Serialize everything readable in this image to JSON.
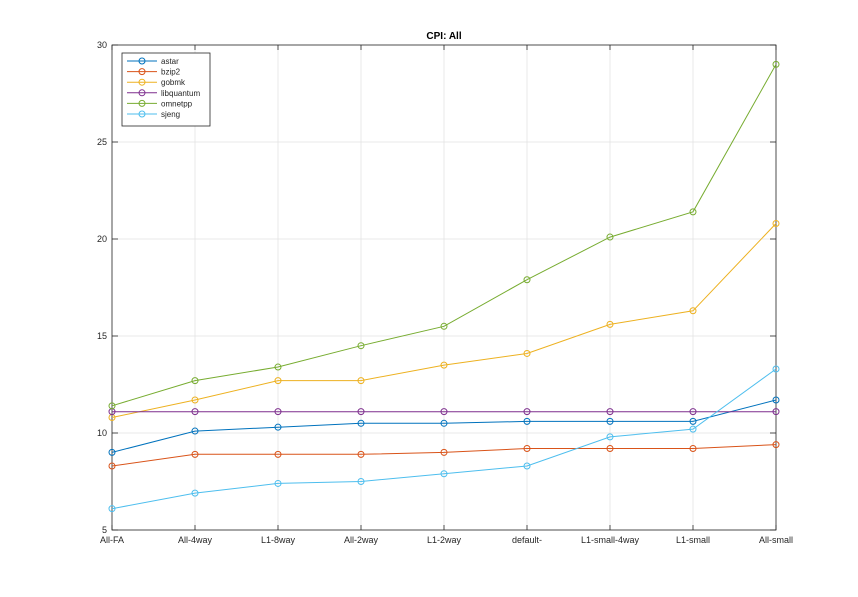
{
  "chart_data": {
    "type": "line",
    "title": "CPI: All",
    "xlabel": "",
    "ylabel": "",
    "categories": [
      "All-FA",
      "All-4way",
      "L1-8way",
      "All-2way",
      "L1-2way",
      "default-",
      "L1-small-4way",
      "L1-small",
      "All-small"
    ],
    "ylim": [
      5,
      30
    ],
    "yticks": [
      5,
      10,
      15,
      20,
      25,
      30
    ],
    "grid": true,
    "legend_position": "top-left",
    "series": [
      {
        "name": "astar",
        "color": "#0072bd",
        "values": [
          9.0,
          10.1,
          10.3,
          10.5,
          10.5,
          10.6,
          10.6,
          10.6,
          11.7
        ]
      },
      {
        "name": "bzip2",
        "color": "#d95319",
        "values": [
          8.3,
          8.9,
          8.9,
          8.9,
          9.0,
          9.2,
          9.2,
          9.2,
          9.4
        ]
      },
      {
        "name": "gobmk",
        "color": "#edb120",
        "values": [
          10.8,
          11.7,
          12.7,
          12.7,
          13.5,
          14.1,
          15.6,
          16.3,
          20.8
        ]
      },
      {
        "name": "libquantum",
        "color": "#7e2f8e",
        "values": [
          11.1,
          11.1,
          11.1,
          11.1,
          11.1,
          11.1,
          11.1,
          11.1,
          11.1
        ]
      },
      {
        "name": "omnetpp",
        "color": "#77ac30",
        "values": [
          11.4,
          12.7,
          13.4,
          14.5,
          15.5,
          17.9,
          20.1,
          21.4,
          29.0
        ]
      },
      {
        "name": "sjeng",
        "color": "#4dbeee",
        "values": [
          6.1,
          6.9,
          7.4,
          7.5,
          7.9,
          8.3,
          9.8,
          10.2,
          13.3
        ]
      }
    ]
  }
}
